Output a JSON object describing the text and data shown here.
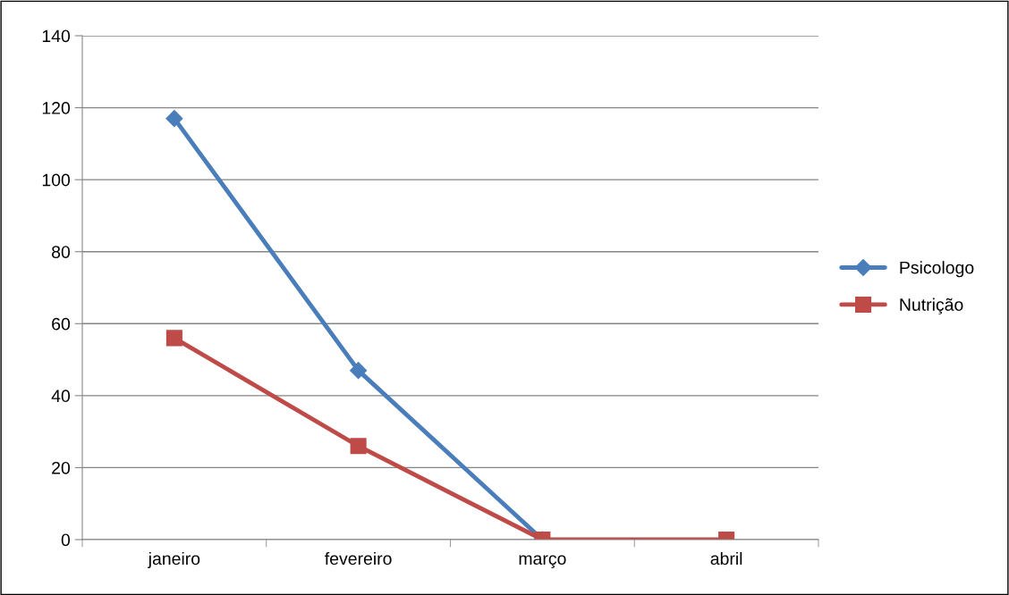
{
  "chart_data": {
    "type": "line",
    "categories": [
      "janeiro",
      "fevereiro",
      "março",
      "abril"
    ],
    "series": [
      {
        "name": "Psicologo",
        "color": "#4a7ebb",
        "marker": "diamond",
        "values": [
          117,
          47,
          0,
          null
        ]
      },
      {
        "name": "Nutrição",
        "color": "#be4b48",
        "marker": "square",
        "values": [
          56,
          26,
          0,
          0
        ]
      }
    ],
    "ylim": [
      0,
      140
    ],
    "yticks": [
      0,
      20,
      40,
      60,
      80,
      100,
      120,
      140
    ],
    "grid": "y",
    "legend": "right",
    "line_style": "solid"
  }
}
